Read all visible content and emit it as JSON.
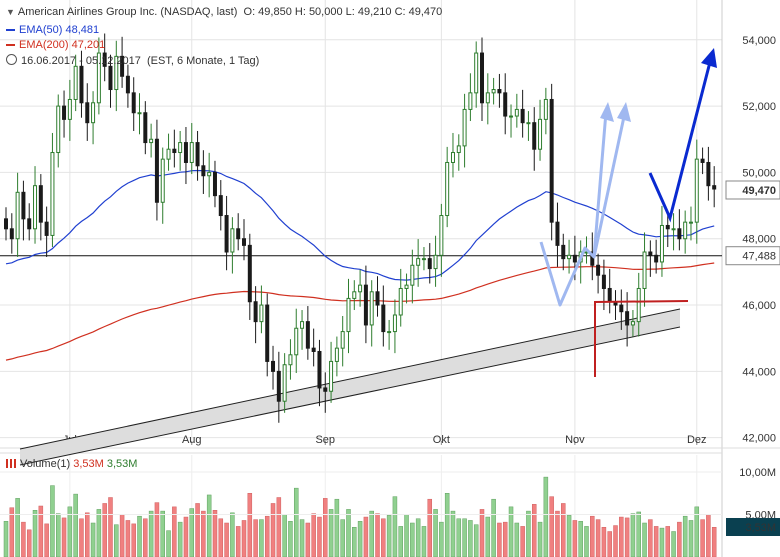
{
  "header": {
    "title": "American Airlines Group Inc. (NASDAQ, last)",
    "ohlc": "O: 49,850  H: 50,000  L: 49,210  C: 49,470",
    "ema50_label": "EMA(50)",
    "ema50_value": "48,481",
    "ema200_label": "EMA(200)",
    "ema200_value": "47,201",
    "range": "16.06.2017 - 05.12.2017",
    "range_info": "(EST, 6 Monate, 1 Tag)"
  },
  "volume_legend": {
    "label": "Volume(1)",
    "value_red": "3,53M",
    "value_green": "3,53M"
  },
  "colors": {
    "up": "#2e7d2e",
    "down": "#1a1a1a",
    "ema50": "#2040d0",
    "ema200": "#d03020",
    "vol_up": "#90d090",
    "vol_down": "#f08080",
    "arrow_dark": "#0a2ad0",
    "arrow_light": "#a0b8f0",
    "support": "#c02020",
    "badge": "#0a4050"
  },
  "chart_data": {
    "type": "candlestick",
    "y_ticks": [
      "42,000",
      "44,000",
      "46,000",
      "48,000",
      "50,000",
      "52,000",
      "54,000"
    ],
    "ylim": [
      41.9,
      55.2
    ],
    "x_ticks": [
      {
        "label": "Jul",
        "idx": 11
      },
      {
        "label": "Aug",
        "idx": 32
      },
      {
        "label": "Sep",
        "idx": 55
      },
      {
        "label": "Okt",
        "idx": 75
      },
      {
        "label": "Nov",
        "idx": 98
      },
      {
        "label": "Dez",
        "idx": 119
      }
    ],
    "last_price": "49,470",
    "last_value": 49.47,
    "hline_label": "47,488",
    "hline_value": 47.488,
    "close": [
      48.3,
      48.0,
      49.4,
      48.6,
      48.3,
      49.6,
      48.5,
      48.1,
      50.6,
      52.0,
      51.6,
      52.2,
      53.2,
      52.1,
      51.5,
      52.1,
      53.6,
      53.2,
      52.5,
      53.5,
      52.9,
      52.4,
      51.8,
      51.8,
      50.9,
      51.0,
      49.1,
      50.4,
      50.7,
      50.6,
      50.9,
      50.3,
      50.9,
      50.2,
      49.9,
      50.0,
      49.3,
      48.7,
      47.6,
      48.3,
      48.0,
      47.8,
      46.1,
      45.5,
      46.0,
      44.3,
      44.0,
      43.1,
      44.2,
      44.5,
      45.3,
      45.5,
      44.7,
      44.6,
      43.5,
      43.4,
      44.3,
      44.7,
      45.2,
      46.2,
      46.4,
      46.6,
      45.4,
      46.4,
      46.0,
      45.2,
      45.2,
      45.7,
      46.5,
      46.6,
      47.2,
      47.4,
      47.4,
      47.1,
      47.5,
      48.7,
      50.3,
      50.6,
      50.8,
      51.9,
      52.4,
      53.6,
      52.1,
      52.4,
      52.5,
      52.4,
      51.7,
      51.7,
      51.9,
      51.5,
      51.5,
      50.7,
      51.6,
      52.2,
      48.5,
      47.8,
      47.4,
      47.5,
      47.3,
      47.6,
      47.6,
      47.2,
      46.9,
      46.5,
      46.1,
      46.0,
      45.8,
      45.4,
      45.5,
      46.5,
      47.6,
      47.5,
      47.3,
      48.4,
      48.3,
      48.3,
      48.0,
      48.5,
      48.5,
      50.4,
      50.3,
      49.6,
      49.5
    ],
    "volume": [
      4.2,
      5.8,
      6.9,
      4.1,
      3.2,
      5.5,
      6.0,
      3.9,
      8.4,
      5.1,
      4.6,
      5.9,
      7.4,
      4.5,
      5.2,
      4.0,
      5.6,
      6.3,
      7.0,
      3.8,
      5.0,
      4.3,
      3.9,
      4.8,
      4.5,
      5.4,
      6.4,
      5.4,
      3.1,
      5.9,
      4.1,
      4.7,
      5.7,
      6.3,
      5.4,
      7.3,
      5.5,
      4.5,
      4.0,
      5.2,
      3.6,
      4.3,
      7.5,
      4.4,
      4.4,
      4.8,
      6.3,
      7.0,
      5.0,
      4.2,
      8.1,
      4.4,
      4.0,
      5.1,
      4.7,
      6.9,
      5.6,
      6.8,
      4.4,
      5.6,
      3.5,
      4.2,
      4.7,
      5.4,
      5.1,
      4.5,
      4.9,
      7.1,
      3.6,
      5.0,
      4.0,
      4.5,
      3.6,
      6.8,
      5.6,
      4.1,
      7.5,
      5.4,
      4.5,
      4.5,
      4.3,
      3.8,
      5.6,
      4.7,
      6.8,
      4.0,
      4.1,
      5.9,
      4.0,
      3.6,
      5.4,
      6.2,
      4.1,
      9.4,
      7.1,
      5.4,
      6.3,
      4.9,
      4.3,
      4.2,
      3.6,
      4.8,
      4.4,
      3.5,
      3.0,
      3.7,
      4.7,
      4.6,
      5.1,
      5.3,
      4.0,
      4.4,
      3.6,
      3.4,
      3.6,
      3.0,
      4.1,
      4.8,
      4.3,
      5.9,
      4.4,
      5.0,
      3.5
    ],
    "vol_ylim": [
      0,
      12
    ],
    "vol_ticks": [
      "10,00M",
      "5,00M"
    ],
    "vol_last": "3,53M"
  }
}
